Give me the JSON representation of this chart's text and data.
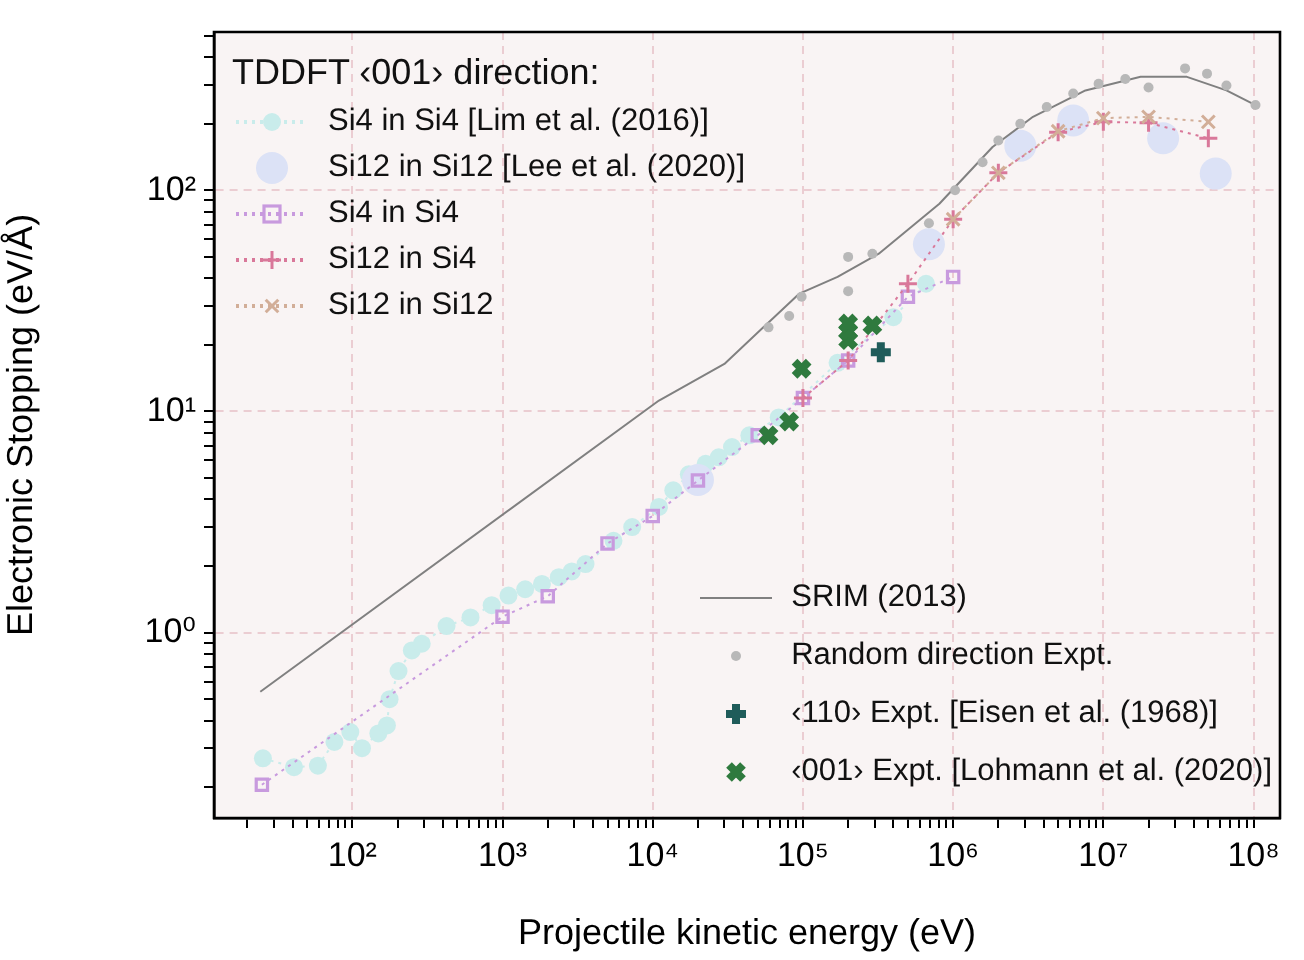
{
  "chart_data": {
    "type": "scatter",
    "xlabel": "Projectile kinetic energy (eV)",
    "ylabel": "Electronic Stopping (eV/Å)",
    "legend_title": "TDDFT ‹001› direction:",
    "legend": "bottom right",
    "log": "xy",
    "grid": true,
    "xlim": [
      12,
      150000000
    ],
    "ylim": [
      0.145,
      520
    ],
    "xticks": [
      {
        "value": 20,
        "label": null
      },
      {
        "value": 30,
        "label": null
      },
      {
        "value": 40,
        "label": null
      },
      {
        "value": 50,
        "label": null
      },
      {
        "value": 60,
        "label": null
      },
      {
        "value": 70,
        "label": null
      },
      {
        "value": 80,
        "label": null
      },
      {
        "value": 90,
        "label": null
      },
      {
        "value": 100,
        "label": "10²"
      },
      {
        "value": 200,
        "label": null
      },
      {
        "value": 300,
        "label": null
      },
      {
        "value": 400,
        "label": null
      },
      {
        "value": 500,
        "label": null
      },
      {
        "value": 600,
        "label": null
      },
      {
        "value": 700,
        "label": null
      },
      {
        "value": 800,
        "label": null
      },
      {
        "value": 900,
        "label": null
      },
      {
        "value": 1000,
        "label": "10³"
      },
      {
        "value": 2000,
        "label": null
      },
      {
        "value": 3000,
        "label": null
      },
      {
        "value": 4000,
        "label": null
      },
      {
        "value": 5000,
        "label": null
      },
      {
        "value": 6000,
        "label": null
      },
      {
        "value": 7000,
        "label": null
      },
      {
        "value": 8000,
        "label": null
      },
      {
        "value": 9000,
        "label": null
      },
      {
        "value": 10000,
        "label": "10⁴"
      },
      {
        "value": 20000,
        "label": null
      },
      {
        "value": 30000,
        "label": null
      },
      {
        "value": 40000,
        "label": null
      },
      {
        "value": 50000,
        "label": null
      },
      {
        "value": 60000,
        "label": null
      },
      {
        "value": 70000,
        "label": null
      },
      {
        "value": 80000,
        "label": null
      },
      {
        "value": 90000,
        "label": null
      },
      {
        "value": 100000,
        "label": "10⁵"
      },
      {
        "value": 200000,
        "label": null
      },
      {
        "value": 300000,
        "label": null
      },
      {
        "value": 400000,
        "label": null
      },
      {
        "value": 500000,
        "label": null
      },
      {
        "value": 600000,
        "label": null
      },
      {
        "value": 700000,
        "label": null
      },
      {
        "value": 800000,
        "label": null
      },
      {
        "value": 900000,
        "label": null
      },
      {
        "value": 1000000,
        "label": "10⁶"
      },
      {
        "value": 2000000,
        "label": null
      },
      {
        "value": 3000000,
        "label": null
      },
      {
        "value": 4000000,
        "label": null
      },
      {
        "value": 5000000,
        "label": null
      },
      {
        "value": 6000000,
        "label": null
      },
      {
        "value": 7000000,
        "label": null
      },
      {
        "value": 8000000,
        "label": null
      },
      {
        "value": 9000000,
        "label": null
      },
      {
        "value": 10000000,
        "label": "10⁷"
      },
      {
        "value": 20000000,
        "label": null
      },
      {
        "value": 30000000,
        "label": null
      },
      {
        "value": 40000000,
        "label": null
      },
      {
        "value": 50000000,
        "label": null
      },
      {
        "value": 60000000,
        "label": null
      },
      {
        "value": 70000000,
        "label": null
      },
      {
        "value": 80000000,
        "label": null
      },
      {
        "value": 90000000,
        "label": null
      },
      {
        "value": 100000000,
        "label": "10⁸"
      }
    ],
    "yticks": [
      {
        "value": 0.2,
        "label": null
      },
      {
        "value": 0.3,
        "label": null
      },
      {
        "value": 0.4,
        "label": null
      },
      {
        "value": 0.5,
        "label": null
      },
      {
        "value": 0.6,
        "label": null
      },
      {
        "value": 0.7,
        "label": null
      },
      {
        "value": 0.8,
        "label": null
      },
      {
        "value": 0.9,
        "label": null
      },
      {
        "value": 1,
        "label": "10⁰"
      },
      {
        "value": 2,
        "label": null
      },
      {
        "value": 3,
        "label": null
      },
      {
        "value": 4,
        "label": null
      },
      {
        "value": 5,
        "label": null
      },
      {
        "value": 6,
        "label": null
      },
      {
        "value": 7,
        "label": null
      },
      {
        "value": 8,
        "label": null
      },
      {
        "value": 9,
        "label": null
      },
      {
        "value": 10,
        "label": "10¹"
      },
      {
        "value": 20,
        "label": null
      },
      {
        "value": 30,
        "label": null
      },
      {
        "value": 40,
        "label": null
      },
      {
        "value": 50,
        "label": null
      },
      {
        "value": 60,
        "label": null
      },
      {
        "value": 70,
        "label": null
      },
      {
        "value": 80,
        "label": null
      },
      {
        "value": 90,
        "label": null
      },
      {
        "value": 100,
        "label": "10²"
      },
      {
        "value": 200,
        "label": null
      },
      {
        "value": 300,
        "label": null
      },
      {
        "value": 400,
        "label": null
      },
      {
        "value": 500,
        "label": null
      }
    ],
    "series": [
      {
        "name": "Si4 in Si4 [Lim et al. (2016)]",
        "type": "line",
        "line_style": "dotted",
        "marker": "circle",
        "color": "#c9eceb",
        "x": [
          25.4,
          40.9,
          59,
          76,
          97,
          116,
          149,
          170,
          177,
          203,
          249,
          290,
          424,
          612,
          847,
          1096,
          1415,
          1830,
          2370,
          2890,
          3570,
          5480,
          7300,
          11000,
          13700,
          17400,
          22500,
          27500,
          33700,
          44000,
          69000,
          170000,
          400000,
          660000
        ],
        "values": [
          0.27,
          0.246,
          0.25,
          0.32,
          0.355,
          0.3,
          0.35,
          0.38,
          0.5,
          0.67,
          0.83,
          0.89,
          1.07,
          1.17,
          1.33,
          1.47,
          1.57,
          1.66,
          1.78,
          1.89,
          2.04,
          2.6,
          3.0,
          3.7,
          4.4,
          5.2,
          5.8,
          6.2,
          6.9,
          7.8,
          9.4,
          16.6,
          26.7,
          37.8
        ]
      },
      {
        "name": "Si12 in Si12 [Lee et al. (2020)]",
        "type": "scatter",
        "marker": "circle",
        "color": "#dce2f6",
        "x": [
          20000,
          690000,
          2800000,
          6300000,
          25000000,
          56000000
        ],
        "values": [
          4.9,
          57,
          159,
          207,
          172,
          119
        ]
      },
      {
        "name": "Si4 in Si4",
        "type": "line",
        "line_style": "dotted",
        "marker": "square",
        "color": "#c89ade",
        "x": [
          25,
          1000,
          2000,
          5000,
          10000,
          20000,
          50000,
          100000,
          200000,
          500000,
          1000000
        ],
        "values": [
          0.205,
          1.18,
          1.46,
          2.53,
          3.37,
          4.87,
          7.8,
          11.5,
          17,
          33,
          40.6
        ]
      },
      {
        "name": "Si12 in Si4",
        "type": "line",
        "line_style": "dotted",
        "marker": "plus",
        "color": "#d9789a",
        "x": [
          100000,
          200000,
          500000,
          1000000,
          2000000,
          5000000,
          10000000,
          20000000,
          50000000
        ],
        "values": [
          11.5,
          17,
          37.8,
          74,
          120,
          183,
          204,
          202,
          172
        ]
      },
      {
        "name": "Si12 in Si12",
        "type": "line",
        "line_style": "dotted",
        "marker": "cross",
        "color": "#d2ae98",
        "x": [
          1000000,
          2000000,
          5000000,
          10000000,
          20000000,
          50000000
        ],
        "values": [
          74,
          120,
          185,
          212,
          215,
          204
        ]
      },
      {
        "name": "SRIM (2013)",
        "type": "line",
        "line_style": "solid",
        "marker": "none",
        "color": "#808080",
        "x": [
          24.4,
          11000,
          30000,
          94000,
          170000,
          320000,
          810000,
          1830000,
          3400000,
          7600000,
          17700000,
          36000000,
          66000000,
          103000000
        ],
        "values": [
          0.54,
          11.2,
          16.4,
          34,
          40.6,
          51.7,
          87,
          157,
          215,
          283,
          326,
          326,
          283,
          243
        ]
      },
      {
        "name": "Random direction Expt.",
        "type": "scatter",
        "marker": "circle",
        "color": "#b8b8b8",
        "x": [
          59000,
          81000,
          98000,
          200000,
          200000,
          290000,
          690000,
          1030000,
          1570000,
          2000000,
          2800000,
          4200000,
          6300000,
          9300000,
          14000000,
          20000000,
          35000000,
          49000000,
          66000000,
          103000000
        ],
        "values": [
          24,
          27,
          33,
          35,
          50,
          51.7,
          71,
          100,
          134,
          168,
          200,
          238,
          274,
          303,
          319,
          292,
          356,
          337,
          298,
          243
        ]
      },
      {
        "name": "‹110› Expt. [Eisen et al. (1968)]",
        "type": "scatter",
        "marker": "plus",
        "color": "#1f5c5a",
        "x": [
          330000
        ],
        "values": [
          18.5
        ]
      },
      {
        "name": "‹001› Expt. [Lohmann et al. (2020)]",
        "type": "scatter",
        "marker": "cross",
        "color": "#2f7a3e",
        "x": [
          59000,
          81000,
          98000,
          200000,
          200000,
          200000,
          290000
        ],
        "values": [
          7.8,
          9,
          15.6,
          21,
          23,
          25,
          24.5
        ]
      }
    ]
  }
}
